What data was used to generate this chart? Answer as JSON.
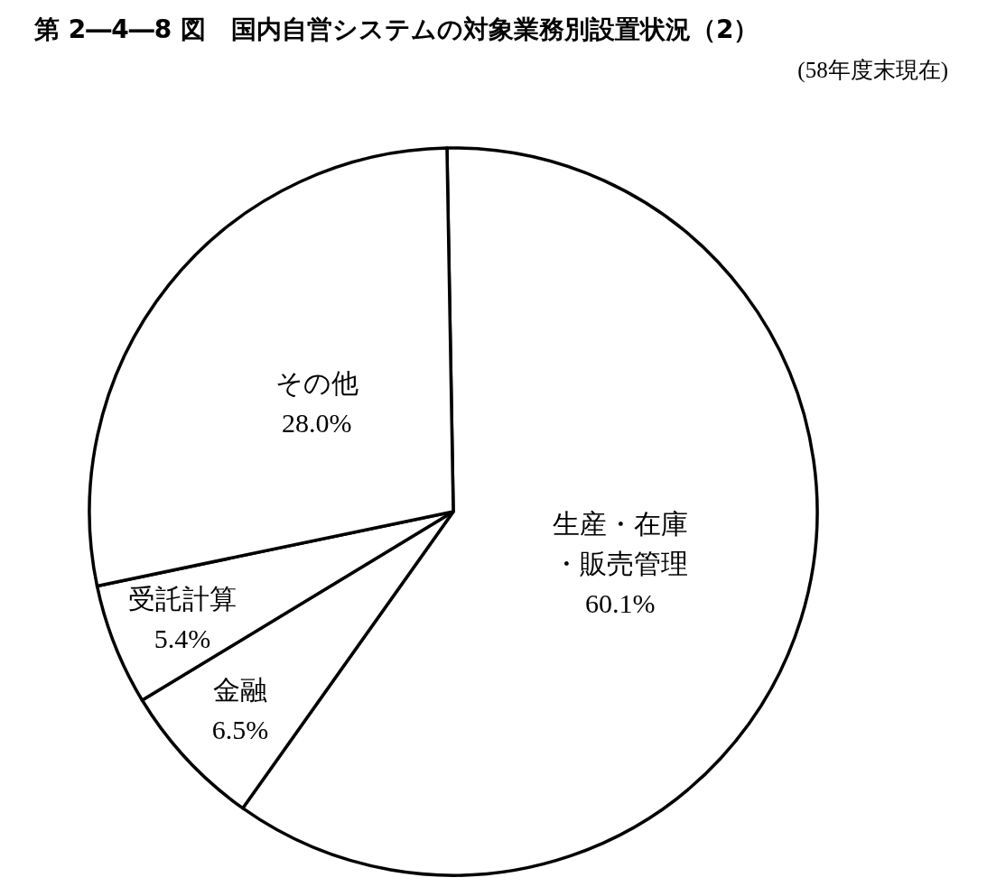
{
  "chart_data": {
    "type": "pie",
    "title": "第 2―4―8 図　国内自営システムの対象業務別設置状況（2）",
    "subtitle": "(58年度末現在)",
    "categories": [
      "生産・在庫・販売管理",
      "金融",
      "受託計算",
      "その他"
    ],
    "values": [
      60.1,
      6.5,
      5.4,
      28.0
    ],
    "value_labels": [
      "60.1%",
      "6.5%",
      "5.4%",
      "28.0%"
    ],
    "colors": [
      "#ffffff",
      "#ffffff",
      "#ffffff",
      "#ffffff"
    ]
  }
}
